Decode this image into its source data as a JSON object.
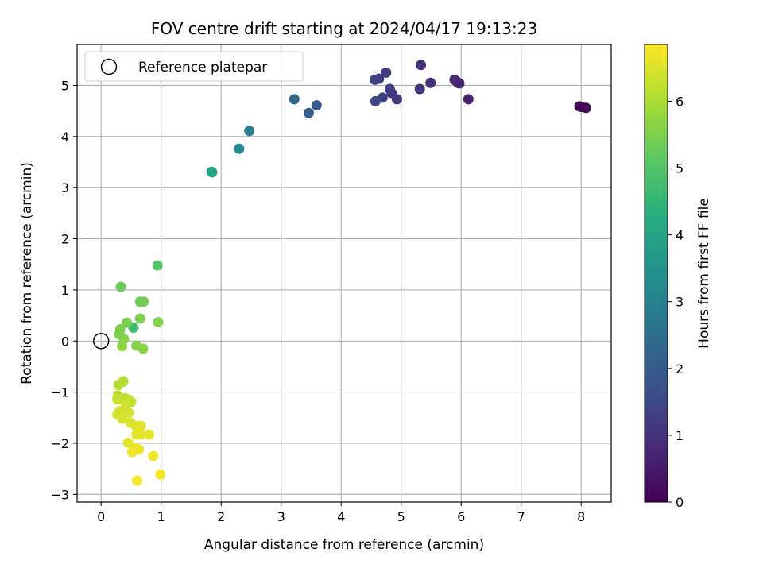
{
  "chart_data": {
    "type": "scatter",
    "title": "FOV centre drift starting at 2024/04/17 19:13:23",
    "xlabel": "Angular distance from reference (arcmin)",
    "ylabel": "Rotation from reference (arcmin)",
    "xlim": [
      -0.4,
      8.5
    ],
    "ylim": [
      -3.15,
      5.8
    ],
    "xticks": [
      0,
      1,
      2,
      3,
      4,
      5,
      6,
      7,
      8
    ],
    "yticks": [
      -3,
      -2,
      -1,
      0,
      1,
      2,
      3,
      4,
      5
    ],
    "grid": true,
    "legend": {
      "placement": "top-left",
      "entries": [
        "Reference platepar"
      ]
    },
    "reference": {
      "x": 0,
      "y": 0
    },
    "colorbar": {
      "label": "Hours from first FF file",
      "range": [
        0,
        6.85
      ],
      "ticks": [
        0,
        1,
        2,
        3,
        4,
        5,
        6
      ],
      "colormap": "viridis"
    },
    "points": [
      {
        "x": 7.97,
        "y": 4.59,
        "h": 0.05
      },
      {
        "x": 8.0,
        "y": 4.58,
        "h": 0.08
      },
      {
        "x": 8.08,
        "y": 4.56,
        "h": 0.12
      },
      {
        "x": 6.12,
        "y": 4.73,
        "h": 0.65
      },
      {
        "x": 5.97,
        "y": 5.04,
        "h": 0.7
      },
      {
        "x": 5.93,
        "y": 5.07,
        "h": 0.75
      },
      {
        "x": 5.89,
        "y": 5.11,
        "h": 0.8
      },
      {
        "x": 5.49,
        "y": 5.05,
        "h": 0.9
      },
      {
        "x": 5.33,
        "y": 5.4,
        "h": 0.95
      },
      {
        "x": 5.31,
        "y": 4.93,
        "h": 1.0
      },
      {
        "x": 4.93,
        "y": 4.73,
        "h": 1.1
      },
      {
        "x": 4.84,
        "y": 4.85,
        "h": 1.15
      },
      {
        "x": 4.81,
        "y": 4.93,
        "h": 1.2
      },
      {
        "x": 4.75,
        "y": 5.25,
        "h": 1.25
      },
      {
        "x": 4.69,
        "y": 4.76,
        "h": 1.3
      },
      {
        "x": 4.63,
        "y": 5.13,
        "h": 1.35
      },
      {
        "x": 4.56,
        "y": 5.11,
        "h": 1.4
      },
      {
        "x": 4.57,
        "y": 4.69,
        "h": 1.45
      },
      {
        "x": 3.59,
        "y": 4.61,
        "h": 2.0
      },
      {
        "x": 3.46,
        "y": 4.46,
        "h": 2.1
      },
      {
        "x": 3.22,
        "y": 4.73,
        "h": 2.25
      },
      {
        "x": 2.47,
        "y": 4.11,
        "h": 2.95
      },
      {
        "x": 2.3,
        "y": 3.76,
        "h": 3.3
      },
      {
        "x": 1.84,
        "y": 3.31,
        "h": 3.95
      },
      {
        "x": 1.85,
        "y": 3.3,
        "h": 4.0
      },
      {
        "x": 0.94,
        "y": 1.48,
        "h": 5.0
      },
      {
        "x": 0.33,
        "y": 1.06,
        "h": 5.3
      },
      {
        "x": 0.54,
        "y": 0.26,
        "h": 4.65
      },
      {
        "x": 0.65,
        "y": 0.77,
        "h": 5.35
      },
      {
        "x": 0.71,
        "y": 0.77,
        "h": 5.4
      },
      {
        "x": 0.43,
        "y": 0.36,
        "h": 5.45
      },
      {
        "x": 0.65,
        "y": 0.44,
        "h": 5.5
      },
      {
        "x": 0.95,
        "y": 0.37,
        "h": 5.55
      },
      {
        "x": 0.32,
        "y": 0.23,
        "h": 5.5
      },
      {
        "x": 0.3,
        "y": 0.13,
        "h": 5.5
      },
      {
        "x": 0.38,
        "y": 0.04,
        "h": 5.6
      },
      {
        "x": 0.59,
        "y": -0.09,
        "h": 5.6
      },
      {
        "x": 0.7,
        "y": -0.15,
        "h": 5.65
      },
      {
        "x": 0.35,
        "y": -0.1,
        "h": 5.7
      },
      {
        "x": 0.37,
        "y": -0.79,
        "h": 6.05
      },
      {
        "x": 0.29,
        "y": -0.86,
        "h": 6.1
      },
      {
        "x": 0.28,
        "y": -1.07,
        "h": 6.15
      },
      {
        "x": 0.4,
        "y": -1.12,
        "h": 6.2
      },
      {
        "x": 0.46,
        "y": -1.15,
        "h": 6.25
      },
      {
        "x": 0.5,
        "y": -1.19,
        "h": 6.25
      },
      {
        "x": 0.27,
        "y": -1.14,
        "h": 6.3
      },
      {
        "x": 0.41,
        "y": -1.24,
        "h": 6.35
      },
      {
        "x": 0.31,
        "y": -1.37,
        "h": 6.4
      },
      {
        "x": 0.27,
        "y": -1.44,
        "h": 6.4
      },
      {
        "x": 0.46,
        "y": -1.4,
        "h": 6.45
      },
      {
        "x": 0.35,
        "y": -1.52,
        "h": 6.45
      },
      {
        "x": 0.49,
        "y": -1.6,
        "h": 6.5
      },
      {
        "x": 0.58,
        "y": -1.66,
        "h": 6.5
      },
      {
        "x": 0.66,
        "y": -1.66,
        "h": 6.55
      },
      {
        "x": 0.59,
        "y": -1.83,
        "h": 6.55
      },
      {
        "x": 0.66,
        "y": -1.83,
        "h": 6.6
      },
      {
        "x": 0.8,
        "y": -1.83,
        "h": 6.6
      },
      {
        "x": 0.45,
        "y": -1.99,
        "h": 6.6
      },
      {
        "x": 0.57,
        "y": -2.1,
        "h": 6.65
      },
      {
        "x": 0.63,
        "y": -2.12,
        "h": 6.65
      },
      {
        "x": 0.52,
        "y": -2.17,
        "h": 6.7
      },
      {
        "x": 0.87,
        "y": -2.25,
        "h": 6.7
      },
      {
        "x": 0.99,
        "y": -2.61,
        "h": 6.75
      },
      {
        "x": 0.6,
        "y": -2.73,
        "h": 6.8
      }
    ]
  }
}
